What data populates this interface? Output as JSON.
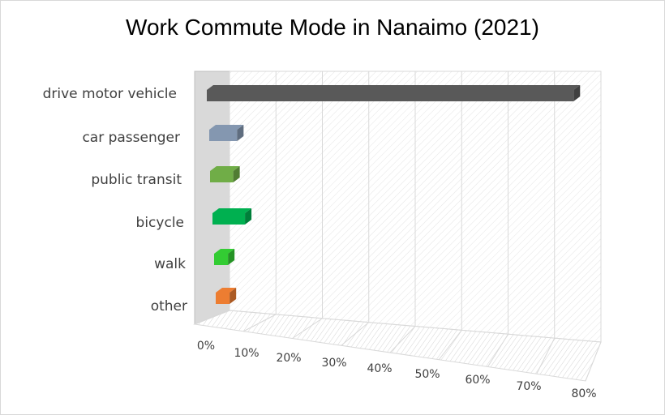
{
  "chart_data": {
    "type": "bar",
    "orientation": "horizontal",
    "style": "3d",
    "title": "Work Commute Mode in Nanaimo (2021)",
    "categories": [
      "drive motor vehicle",
      "car passenger",
      "public transit",
      "bicycle",
      "walk",
      "other"
    ],
    "values": [
      0.79,
      0.06,
      0.05,
      0.07,
      0.03,
      0.03
    ],
    "colors": [
      "#595959",
      "#8497b0",
      "#70ad47",
      "#00b050",
      "#33cc33",
      "#ed7d31"
    ],
    "xlim": [
      0,
      0.8
    ],
    "ticks": [
      "0%",
      "10%",
      "20%",
      "30%",
      "40%",
      "50%",
      "60%",
      "70%",
      "80%"
    ],
    "grid": true,
    "legend": "none"
  }
}
